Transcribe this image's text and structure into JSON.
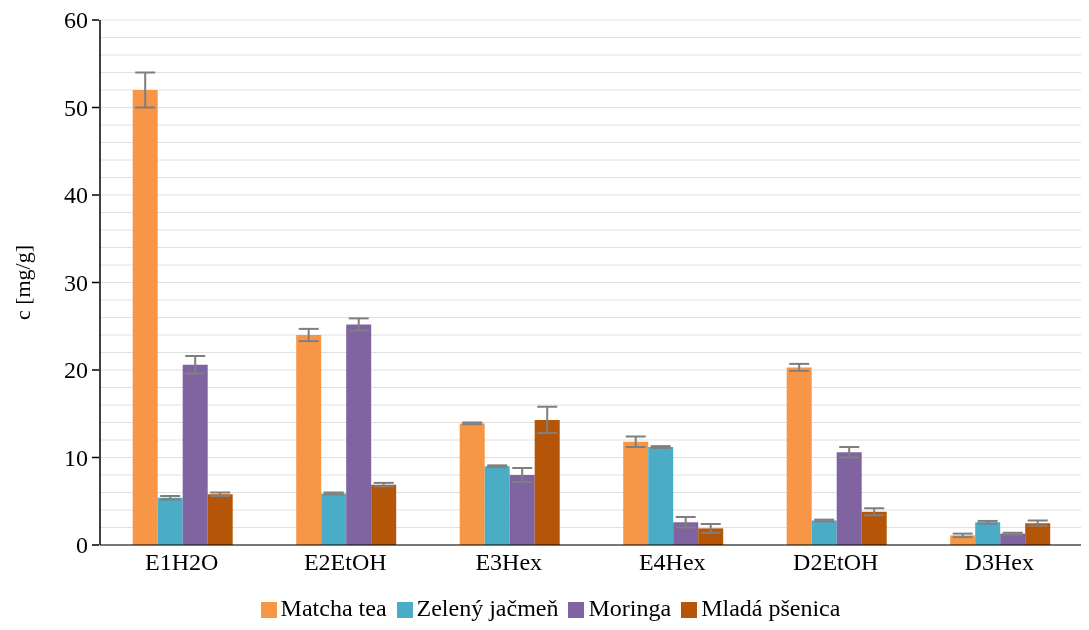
{
  "chart_data": {
    "type": "bar",
    "ylabel": "c [mg/g]",
    "categories": [
      "E1H2O",
      "E2EtOH",
      "E3Hex",
      "E4Hex",
      "D2EtOH",
      "D3Hex"
    ],
    "series": [
      {
        "name": "Matcha tea",
        "color": "#f79646",
        "values": [
          52,
          24,
          13.9,
          11.8,
          20.3,
          1.1
        ],
        "errors": [
          2,
          0.7,
          0.1,
          0.6,
          0.4,
          0.2
        ]
      },
      {
        "name": "Zelený jačmeň",
        "color": "#4bacc6",
        "values": [
          5.4,
          5.9,
          9.0,
          11.2,
          2.8,
          2.6
        ],
        "errors": [
          0.2,
          0.1,
          0.1,
          0.1,
          0.1,
          0.15
        ]
      },
      {
        "name": "Moringa",
        "color": "#8064a2",
        "values": [
          20.6,
          25.2,
          8.0,
          2.6,
          10.6,
          1.3
        ],
        "errors": [
          1,
          0.7,
          0.8,
          0.6,
          0.6,
          0.1
        ]
      },
      {
        "name": "Mladá pšenica",
        "color": "#b45507",
        "values": [
          5.8,
          6.9,
          14.3,
          1.9,
          3.8,
          2.5
        ],
        "errors": [
          0.2,
          0.2,
          1.5,
          0.5,
          0.4,
          0.3
        ]
      }
    ],
    "ylim": [
      0,
      60
    ],
    "yticks": [
      0,
      {
        "value": 2,
        "label": null
      },
      {
        "value": 4,
        "label": null
      },
      {
        "value": 6,
        "label": null
      },
      {
        "value": 8,
        "label": null
      },
      10,
      {
        "value": 12,
        "label": null
      },
      {
        "value": 14,
        "label": null
      },
      {
        "value": 16,
        "label": null
      },
      {
        "value": 18,
        "label": null
      },
      20,
      {
        "value": 22,
        "label": null
      },
      {
        "value": 24,
        "label": null
      },
      {
        "value": 26,
        "label": null
      },
      {
        "value": 28,
        "label": null
      },
      30,
      {
        "value": 32,
        "label": null
      },
      {
        "value": 34,
        "label": null
      },
      {
        "value": 36,
        "label": null
      },
      {
        "value": 38,
        "label": null
      },
      40,
      {
        "value": 42,
        "label": null
      },
      {
        "value": 44,
        "label": null
      },
      {
        "value": 46,
        "label": null
      },
      {
        "value": 48,
        "label": null
      },
      50,
      {
        "value": 52,
        "label": null
      },
      {
        "value": 54,
        "label": null
      },
      {
        "value": 56,
        "label": null
      },
      {
        "value": 58,
        "label": null
      },
      60
    ],
    "grid": "y",
    "legend": "bottom"
  }
}
